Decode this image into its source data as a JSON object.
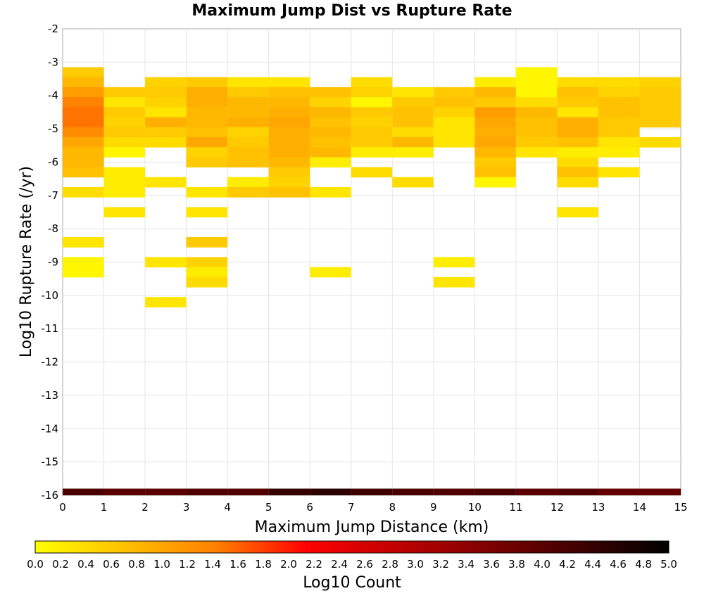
{
  "chart_data": {
    "type": "heatmap",
    "title": "Maximum Jump Dist vs Rupture Rate",
    "xlabel": "Maximum Jump Distance (km)",
    "ylabel": "Log10 Rupture Rate (/yr)",
    "xlim": [
      0,
      15
    ],
    "ylim": [
      -16,
      -2
    ],
    "x_ticks": [
      "0",
      "1",
      "2",
      "3",
      "4",
      "5",
      "6",
      "7",
      "8",
      "9",
      "10",
      "11",
      "12",
      "13",
      "14",
      "15"
    ],
    "y_ticks": [
      "-2",
      "-3",
      "-4",
      "-5",
      "-6",
      "-7",
      "-8",
      "-9",
      "-10",
      "-11",
      "-12",
      "-13",
      "-14",
      "-15",
      "-16"
    ],
    "colorbar": {
      "label": "Log10 Count",
      "range": [
        0,
        5
      ],
      "ticks": [
        "0.0",
        "0.2",
        "0.4",
        "0.6",
        "0.8",
        "1.0",
        "1.2",
        "1.4",
        "1.6",
        "1.8",
        "2.0",
        "2.2",
        "2.4",
        "2.6",
        "2.8",
        "3.0",
        "3.2",
        "3.4",
        "3.6",
        "3.8",
        "4.0",
        "4.2",
        "4.4",
        "4.6",
        "4.8",
        "5.0"
      ],
      "colors": [
        "#ffff00",
        "#ffc000",
        "#ff8000",
        "#ff0000",
        "#c00000",
        "#800000",
        "#400000",
        "#000000"
      ]
    },
    "bin_size": {
      "x": 1,
      "y": 0.3
    },
    "column_bins_y_bottom": -16,
    "column_bins_value": [
      4.2,
      4.0,
      4.0,
      4.1,
      4.1,
      4.4,
      4.5,
      4.3,
      4.2,
      4.1,
      4.2,
      4.0,
      4.1,
      3.9,
      3.9
    ],
    "cells": [
      [
        0,
        -3.3,
        0.6
      ],
      [
        0,
        -3.6,
        0.8
      ],
      [
        0,
        -3.9,
        1.1
      ],
      [
        0,
        -4.2,
        1.4
      ],
      [
        0,
        -4.5,
        1.5
      ],
      [
        0,
        -4.8,
        1.5
      ],
      [
        0,
        -5.1,
        1.3
      ],
      [
        0,
        -5.4,
        1.0
      ],
      [
        0,
        -5.7,
        0.8
      ],
      [
        0,
        -6.0,
        0.8
      ],
      [
        0,
        -6.3,
        0.7
      ],
      [
        0,
        -6.9,
        0.4
      ],
      [
        0,
        -8.4,
        0.3
      ],
      [
        0,
        -9.0,
        0.1
      ],
      [
        0,
        -9.3,
        0.1
      ],
      [
        1,
        -3.9,
        0.6
      ],
      [
        1,
        -4.2,
        0.3
      ],
      [
        1,
        -4.5,
        0.6
      ],
      [
        1,
        -4.8,
        0.5
      ],
      [
        1,
        -5.1,
        0.6
      ],
      [
        1,
        -5.4,
        0.4
      ],
      [
        1,
        -5.7,
        0.1
      ],
      [
        1,
        -6.3,
        0.2
      ],
      [
        1,
        -6.6,
        0.2
      ],
      [
        1,
        -6.9,
        0.2
      ],
      [
        1,
        -7.5,
        0.3
      ],
      [
        2,
        -3.6,
        0.5
      ],
      [
        2,
        -3.9,
        0.6
      ],
      [
        2,
        -4.2,
        0.5
      ],
      [
        2,
        -4.5,
        0.3
      ],
      [
        2,
        -4.8,
        0.9
      ],
      [
        2,
        -5.1,
        0.6
      ],
      [
        2,
        -5.4,
        0.4
      ],
      [
        2,
        -6.6,
        0.3
      ],
      [
        2,
        -9.0,
        0.3
      ],
      [
        2,
        -10.2,
        0.3
      ],
      [
        3,
        -3.6,
        0.6
      ],
      [
        3,
        -3.9,
        0.9
      ],
      [
        3,
        -4.2,
        0.9
      ],
      [
        3,
        -4.5,
        0.8
      ],
      [
        3,
        -4.8,
        0.8
      ],
      [
        3,
        -5.1,
        0.7
      ],
      [
        3,
        -5.4,
        1.0
      ],
      [
        3,
        -5.7,
        0.5
      ],
      [
        3,
        -6.0,
        0.6
      ],
      [
        3,
        -6.9,
        0.3
      ],
      [
        3,
        -7.5,
        0.3
      ],
      [
        3,
        -8.4,
        0.6
      ],
      [
        3,
        -9.0,
        0.5
      ],
      [
        3,
        -9.3,
        0.2
      ],
      [
        3,
        -9.6,
        0.4
      ],
      [
        4,
        -3.6,
        0.3
      ],
      [
        4,
        -3.9,
        0.6
      ],
      [
        4,
        -4.2,
        0.8
      ],
      [
        4,
        -4.5,
        0.8
      ],
      [
        4,
        -4.8,
        0.9
      ],
      [
        4,
        -5.1,
        0.5
      ],
      [
        4,
        -5.4,
        0.6
      ],
      [
        4,
        -5.7,
        0.7
      ],
      [
        4,
        -6.0,
        0.7
      ],
      [
        4,
        -6.6,
        0.2
      ],
      [
        4,
        -6.9,
        0.6
      ],
      [
        5,
        -3.6,
        0.3
      ],
      [
        5,
        -3.9,
        0.7
      ],
      [
        5,
        -4.2,
        0.8
      ],
      [
        5,
        -4.5,
        0.9
      ],
      [
        5,
        -4.8,
        1.0
      ],
      [
        5,
        -5.1,
        0.9
      ],
      [
        5,
        -5.4,
        0.9
      ],
      [
        5,
        -5.7,
        0.9
      ],
      [
        5,
        -6.0,
        0.8
      ],
      [
        5,
        -6.3,
        0.6
      ],
      [
        5,
        -6.6,
        0.5
      ],
      [
        5,
        -6.9,
        0.7
      ],
      [
        6,
        -3.9,
        0.7
      ],
      [
        6,
        -4.2,
        0.5
      ],
      [
        6,
        -4.5,
        0.8
      ],
      [
        6,
        -4.8,
        0.7
      ],
      [
        6,
        -5.1,
        0.8
      ],
      [
        6,
        -5.4,
        0.7
      ],
      [
        6,
        -5.7,
        0.8
      ],
      [
        6,
        -6.0,
        0.2
      ],
      [
        6,
        -6.9,
        0.3
      ],
      [
        6,
        -9.3,
        0.2
      ],
      [
        7,
        -3.6,
        0.4
      ],
      [
        7,
        -3.9,
        0.5
      ],
      [
        7,
        -4.2,
        0.1
      ],
      [
        7,
        -4.5,
        0.6
      ],
      [
        7,
        -4.8,
        0.5
      ],
      [
        7,
        -5.1,
        0.6
      ],
      [
        7,
        -5.4,
        0.6
      ],
      [
        7,
        -5.7,
        0.2
      ],
      [
        7,
        -6.3,
        0.4
      ],
      [
        8,
        -3.9,
        0.3
      ],
      [
        8,
        -4.2,
        0.6
      ],
      [
        8,
        -4.5,
        0.7
      ],
      [
        8,
        -4.8,
        0.7
      ],
      [
        8,
        -5.1,
        0.4
      ],
      [
        8,
        -5.4,
        0.8
      ],
      [
        8,
        -5.7,
        0.2
      ],
      [
        8,
        -6.6,
        0.4
      ],
      [
        9,
        -3.9,
        0.6
      ],
      [
        9,
        -4.2,
        0.7
      ],
      [
        9,
        -4.5,
        0.5
      ],
      [
        9,
        -4.8,
        0.3
      ],
      [
        9,
        -5.1,
        0.3
      ],
      [
        9,
        -5.4,
        0.3
      ],
      [
        9,
        -9.0,
        0.2
      ],
      [
        9,
        -9.6,
        0.3
      ],
      [
        10,
        -3.6,
        0.2
      ],
      [
        10,
        -3.9,
        0.8
      ],
      [
        10,
        -4.2,
        0.6
      ],
      [
        10,
        -4.5,
        1.1
      ],
      [
        10,
        -4.8,
        1.0
      ],
      [
        10,
        -5.1,
        0.9
      ],
      [
        10,
        -5.4,
        1.0
      ],
      [
        10,
        -5.7,
        0.8
      ],
      [
        10,
        -6.0,
        0.6
      ],
      [
        10,
        -6.3,
        0.7
      ],
      [
        10,
        -6.6,
        0.1
      ],
      [
        11,
        -3.3,
        0.1
      ],
      [
        11,
        -3.6,
        0.1
      ],
      [
        11,
        -3.9,
        0.1
      ],
      [
        11,
        -4.2,
        0.4
      ],
      [
        11,
        -4.5,
        0.8
      ],
      [
        11,
        -4.8,
        0.7
      ],
      [
        11,
        -5.1,
        0.7
      ],
      [
        11,
        -5.4,
        0.6
      ],
      [
        11,
        -5.7,
        0.3
      ],
      [
        12,
        -3.6,
        0.4
      ],
      [
        12,
        -3.9,
        0.7
      ],
      [
        12,
        -4.2,
        0.6
      ],
      [
        12,
        -4.5,
        0.3
      ],
      [
        12,
        -4.8,
        0.9
      ],
      [
        12,
        -5.1,
        0.9
      ],
      [
        12,
        -5.4,
        0.7
      ],
      [
        12,
        -5.7,
        0.2
      ],
      [
        12,
        -6.0,
        0.4
      ],
      [
        12,
        -6.3,
        0.7
      ],
      [
        12,
        -6.6,
        0.4
      ],
      [
        12,
        -7.5,
        0.3
      ],
      [
        13,
        -3.6,
        0.4
      ],
      [
        13,
        -3.9,
        0.5
      ],
      [
        13,
        -4.2,
        0.7
      ],
      [
        13,
        -4.5,
        0.7
      ],
      [
        13,
        -4.8,
        0.6
      ],
      [
        13,
        -5.1,
        0.6
      ],
      [
        13,
        -5.4,
        0.3
      ],
      [
        13,
        -5.7,
        0.2
      ],
      [
        13,
        -6.3,
        0.3
      ],
      [
        14,
        -3.6,
        0.5
      ],
      [
        14,
        -3.9,
        0.6
      ],
      [
        14,
        -4.2,
        0.6
      ],
      [
        14,
        -4.5,
        0.6
      ],
      [
        14,
        -4.8,
        0.6
      ],
      [
        14,
        -5.4,
        0.4
      ]
    ]
  }
}
